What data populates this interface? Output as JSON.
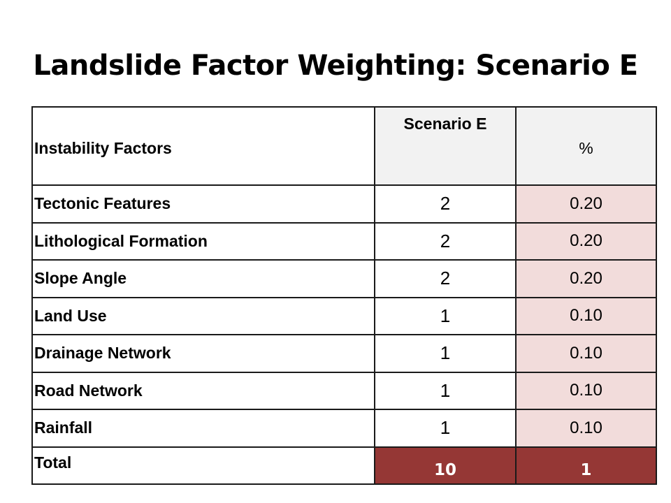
{
  "slide": {
    "title": "Landslide Factor Weighting: Scenario E"
  },
  "table": {
    "headers": {
      "factor": "Instability Factors",
      "score": "Scenario E",
      "pct": "%"
    },
    "rows": [
      {
        "factor": "Tectonic Features",
        "score": "2",
        "pct": "0.20"
      },
      {
        "factor": "Lithological Formation",
        "score": "2",
        "pct": "0.20"
      },
      {
        "factor": "Slope Angle",
        "score": "2",
        "pct": "0.20"
      },
      {
        "factor": "Land Use",
        "score": "1",
        "pct": "0.10"
      },
      {
        "factor": "Drainage Network",
        "score": "1",
        "pct": "0.10"
      },
      {
        "factor": "Road Network",
        "score": "1",
        "pct": "0.10"
      },
      {
        "factor": "Rainfall",
        "score": "1",
        "pct": "0.10"
      }
    ],
    "total": {
      "label": "Total",
      "score": "10",
      "pct": "1"
    }
  },
  "colors": {
    "header_fill": "#f2f2f2",
    "pct_fill": "#f2dcdb",
    "total_fill": "#953735",
    "total_text": "#ffffff",
    "border": "#1a1a1a"
  }
}
